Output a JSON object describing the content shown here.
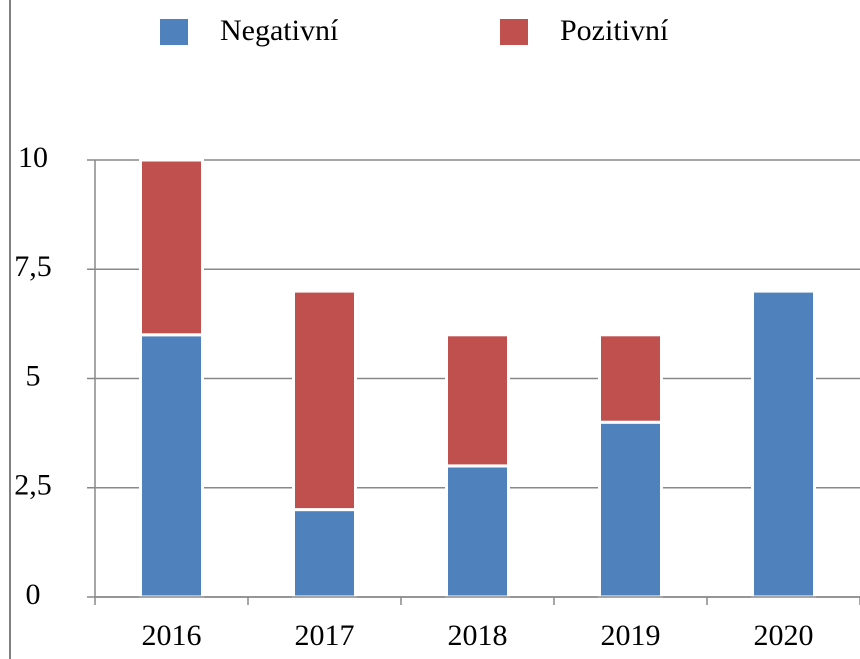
{
  "chart_data": {
    "type": "stacked_bar",
    "categories": [
      "2016",
      "2017",
      "2018",
      "2019",
      "2020"
    ],
    "series": [
      {
        "name": "Negativní",
        "color": "#4f81bd",
        "values": [
          6,
          2,
          3,
          4,
          7
        ]
      },
      {
        "name": "Pozitivní",
        "color": "#c0504d",
        "values": [
          4,
          5,
          3,
          2,
          0
        ]
      }
    ],
    "ylim": [
      0,
      10
    ],
    "yticks": [
      0,
      {
        "value": 2.5,
        "label": "2,5"
      },
      5,
      {
        "value": 7.5,
        "label": "7,5"
      },
      10
    ],
    "grid": true,
    "legend": "top"
  }
}
